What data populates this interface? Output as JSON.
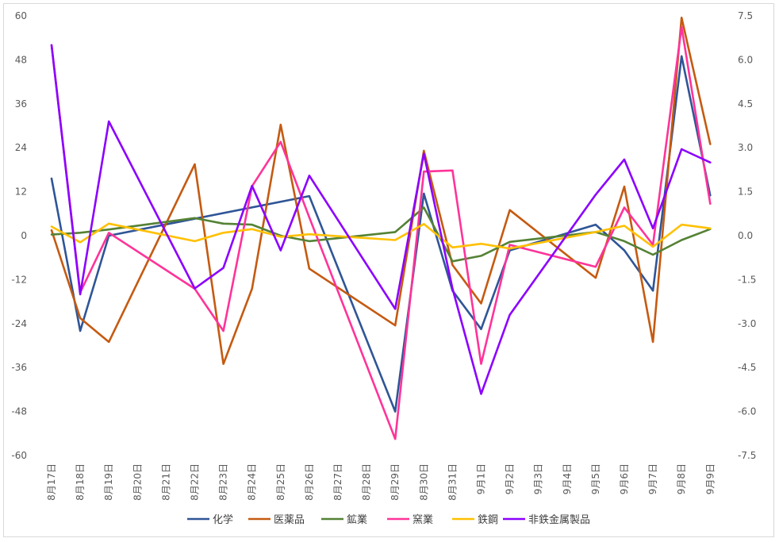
{
  "chart_data": {
    "type": "line",
    "title": "",
    "xlabel": "",
    "ylabel": "",
    "categories": [
      "8月17日",
      "8月18日",
      "8月19日",
      "8月20日",
      "8月21日",
      "8月22日",
      "8月23日",
      "8月24日",
      "8月25日",
      "8月26日",
      "8月27日",
      "8月28日",
      "8月29日",
      "8月30日",
      "8月31日",
      "9月1日",
      "9月2日",
      "9月3日",
      "9月4日",
      "9月5日",
      "9月6日",
      "9月7日",
      "9月8日",
      "9月9日"
    ],
    "ylim": [
      -60,
      60
    ],
    "yticks": [
      "60",
      "48",
      "36",
      "24",
      "12",
      "0",
      "-12",
      "-24",
      "-36",
      "-48",
      "-60"
    ],
    "y2lim": [
      -7.5,
      7.5
    ],
    "y2ticks": [
      "7.5",
      "6.0",
      "4.5",
      "3.0",
      "1.5",
      "0.0",
      "-1.5",
      "-3.0",
      "-4.5",
      "-6.0",
      "-7.5"
    ],
    "grid": false,
    "legend_position": "bottom",
    "series": [
      {
        "name": "化学",
        "color": "#2f5597",
        "axis": "left",
        "points": [
          [
            0,
            15.6
          ],
          [
            1,
            -26
          ],
          [
            2,
            0
          ],
          [
            9,
            10.8
          ],
          [
            12,
            -48
          ],
          [
            13,
            11.5
          ],
          [
            14,
            -15
          ],
          [
            15,
            -25.5
          ],
          [
            16,
            -4
          ],
          [
            19,
            3
          ],
          [
            20,
            -4
          ],
          [
            21,
            -15
          ],
          [
            22,
            49
          ],
          [
            23,
            11
          ]
        ]
      },
      {
        "name": "医薬品",
        "color": "#c55a11",
        "axis": "left",
        "points": [
          [
            0,
            1.5
          ],
          [
            1,
            -22.5
          ],
          [
            2,
            -29
          ],
          [
            5,
            19.5
          ],
          [
            6,
            -35
          ],
          [
            7,
            -14.5
          ],
          [
            8,
            30.3
          ],
          [
            9,
            -9
          ],
          [
            12,
            -24.5
          ],
          [
            13,
            23.2
          ],
          [
            14,
            -8
          ],
          [
            15,
            -18.5
          ],
          [
            16,
            7
          ],
          [
            19,
            -11.5
          ],
          [
            20,
            13.4
          ],
          [
            21,
            -29
          ],
          [
            22,
            59.5
          ],
          [
            23,
            25
          ]
        ]
      },
      {
        "name": "鉱業",
        "color": "#548235",
        "axis": "left",
        "points": [
          [
            0,
            0.3
          ],
          [
            1,
            0.8
          ],
          [
            2,
            1.7
          ],
          [
            5,
            4.8
          ],
          [
            6,
            3.3
          ],
          [
            7,
            3
          ],
          [
            8,
            0
          ],
          [
            9,
            -1.5
          ],
          [
            12,
            1
          ],
          [
            13,
            7.7
          ],
          [
            14,
            -7
          ],
          [
            15,
            -5.5
          ],
          [
            16,
            -1.7
          ],
          [
            19,
            1
          ],
          [
            20,
            -1.5
          ],
          [
            21,
            -5.2
          ],
          [
            22,
            -1.2
          ],
          [
            23,
            1.8
          ]
        ]
      },
      {
        "name": "窯業",
        "color": "#ff3399",
        "axis": "left",
        "points": [
          [
            0,
            52
          ],
          [
            1,
            -15.5
          ],
          [
            2,
            0.8
          ],
          [
            5,
            -14.5
          ],
          [
            6,
            -26
          ],
          [
            7,
            13.5
          ],
          [
            8,
            25.6
          ],
          [
            9,
            5
          ],
          [
            12,
            -55.5
          ],
          [
            13,
            17.5
          ],
          [
            14,
            17.8
          ],
          [
            15,
            -35
          ],
          [
            16,
            -2.5
          ],
          [
            19,
            -8.5
          ],
          [
            20,
            7.7
          ],
          [
            21,
            -2.5
          ],
          [
            22,
            57
          ],
          [
            23,
            8.7
          ]
        ]
      },
      {
        "name": "鉄鋼",
        "color": "#ffc000",
        "axis": "left",
        "points": [
          [
            0,
            2.5
          ],
          [
            1,
            -1.8
          ],
          [
            2,
            3.3
          ],
          [
            5,
            -1.5
          ],
          [
            6,
            0.8
          ],
          [
            7,
            1.8
          ],
          [
            8,
            -0.3
          ],
          [
            9,
            0.4
          ],
          [
            12,
            -1.2
          ],
          [
            13,
            3.2
          ],
          [
            14,
            -3.2
          ],
          [
            15,
            -2.2
          ],
          [
            16,
            -3.5
          ],
          [
            19,
            1
          ],
          [
            20,
            2.7
          ],
          [
            21,
            -3
          ],
          [
            22,
            3
          ],
          [
            23,
            2
          ]
        ]
      },
      {
        "name": "非鉄金属製品",
        "color": "#8b00ff",
        "axis": "right",
        "points": [
          [
            0,
            6.5
          ],
          [
            1,
            -2
          ],
          [
            2,
            3.9
          ],
          [
            5,
            -1.8
          ],
          [
            6,
            -1.1
          ],
          [
            7,
            1.7
          ],
          [
            8,
            -0.5
          ],
          [
            9,
            2.05
          ],
          [
            12,
            -2.5
          ],
          [
            13,
            2.8
          ],
          [
            14,
            -1.8
          ],
          [
            15,
            -5.4
          ],
          [
            16,
            -2.7
          ],
          [
            19,
            1.4
          ],
          [
            20,
            2.6
          ],
          [
            21,
            0.25
          ],
          [
            22,
            2.95
          ],
          [
            23,
            2.5
          ]
        ]
      }
    ]
  }
}
